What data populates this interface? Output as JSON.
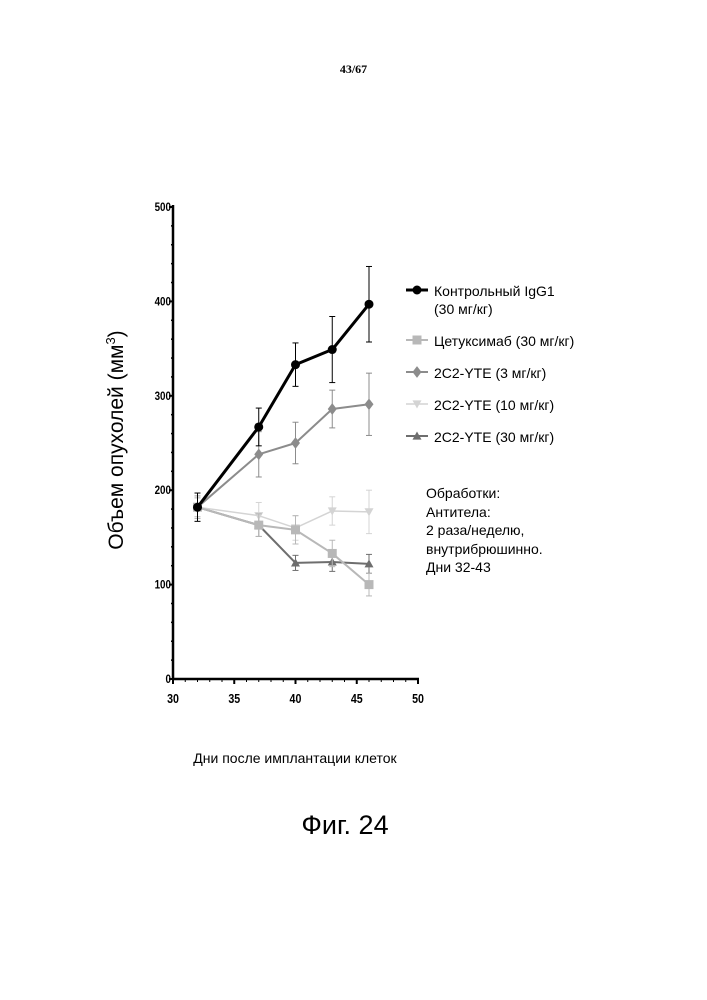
{
  "page_number": "43/67",
  "figure_caption": "Фиг. 24",
  "treatment_note": [
    "Обработки:",
    "Антитела:",
    "2 раза/неделю,",
    "внутрибрюшинно.",
    "Дни 32-43"
  ],
  "chart_data": {
    "type": "line",
    "xlabel": "Дни после имплантации клеток",
    "ylabel": "Объем опухолей (мм",
    "ylabel_superscript": "3",
    "ylabel_suffix": ")",
    "xlim": [
      30,
      50
    ],
    "ylim": [
      0,
      500
    ],
    "xticks": [
      30,
      35,
      40,
      45,
      50
    ],
    "yticks": [
      0,
      100,
      200,
      300,
      400,
      500
    ],
    "x": [
      32,
      37,
      40,
      43,
      46
    ],
    "series": [
      {
        "name": "Контрольный IgG1\n(30 мг/кг)",
        "values": [
          182,
          267,
          333,
          349,
          397
        ],
        "err": [
          15,
          20,
          23,
          35,
          40
        ],
        "color": "#000000",
        "marker": "circle",
        "stroke_width": 3
      },
      {
        "name": "Цетуксимаб (30 мг/кг)",
        "values": [
          182,
          163,
          158,
          133,
          100
        ],
        "err": [
          12,
          12,
          15,
          14,
          12
        ],
        "color": "#b8b8b8",
        "marker": "square",
        "stroke_width": 2
      },
      {
        "name": "2C2-YTE (3 мг/кг)",
        "values": [
          182,
          238,
          250,
          286,
          291
        ],
        "err": [
          12,
          24,
          22,
          20,
          33
        ],
        "color": "#8c8c8c",
        "marker": "diamond",
        "stroke_width": 2
      },
      {
        "name": "2C2-YTE (10 мг/кг)",
        "values": [
          182,
          173,
          160,
          178,
          177
        ],
        "err": [
          10,
          14,
          13,
          15,
          23
        ],
        "color": "#d4d4d4",
        "marker": "triangle-down",
        "stroke_width": 1.5
      },
      {
        "name": "2C2-YTE (30 мг/кг)",
        "values": [
          182,
          163,
          123,
          124,
          122
        ],
        "err": [
          10,
          12,
          8,
          10,
          10
        ],
        "color": "#6e6e6e",
        "marker": "triangle-up",
        "stroke_width": 2
      }
    ],
    "legend_position": "right",
    "grid": false
  }
}
